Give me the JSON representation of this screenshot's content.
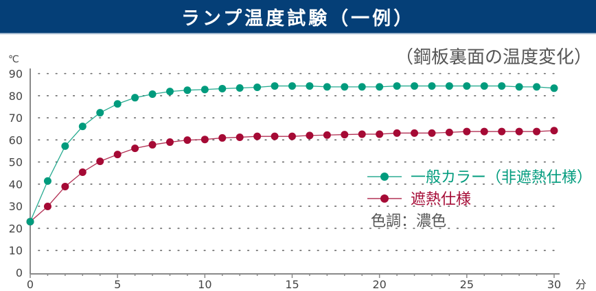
{
  "chart_data": {
    "type": "line",
    "title": "ランプ温度試験（一例）",
    "subtitle": "（鋼板裏面の温度変化）",
    "ylabel": "℃",
    "xlabel": "分",
    "xlim": [
      0,
      30
    ],
    "ylim": [
      0,
      90
    ],
    "x_ticks": [
      "0",
      "5",
      "10",
      "15",
      "20",
      "25",
      "30"
    ],
    "y_ticks": [
      "0",
      "10",
      "20",
      "30",
      "40",
      "50",
      "60",
      "70",
      "80",
      "90"
    ],
    "grid": "dotted horizontal",
    "legend_position": "right-middle",
    "legend_note": "色調：濃色",
    "x": [
      0,
      1,
      2,
      3,
      4,
      5,
      6,
      7,
      8,
      9,
      10,
      11,
      12,
      13,
      14,
      15,
      16,
      17,
      18,
      19,
      20,
      21,
      22,
      23,
      24,
      25,
      26,
      27,
      28,
      29,
      30
    ],
    "series": [
      {
        "name": "一般カラー（非遮熱仕様）",
        "color": "#009b7d",
        "values": [
          23,
          41.4,
          57.2,
          66.1,
          72.3,
          76.3,
          79.1,
          80.7,
          81.9,
          82.5,
          82.8,
          83.2,
          83.5,
          83.8,
          84.4,
          84.4,
          84.4,
          84.0,
          84.0,
          84.0,
          84.0,
          84.4,
          84.4,
          84.4,
          84.4,
          84.4,
          84.4,
          84.4,
          84.0,
          84.0,
          83.4
        ]
      },
      {
        "name": "遮熱仕様",
        "color": "#a50a35",
        "values": [
          23,
          29.9,
          38.9,
          45.4,
          50.3,
          53.4,
          56.2,
          57.8,
          59.0,
          59.9,
          60.2,
          60.9,
          61.2,
          61.6,
          61.6,
          61.6,
          62.0,
          62.2,
          62.4,
          62.6,
          62.6,
          63.1,
          63.1,
          63.1,
          63.4,
          63.8,
          63.8,
          63.8,
          63.8,
          63.8,
          64.2
        ]
      }
    ]
  }
}
